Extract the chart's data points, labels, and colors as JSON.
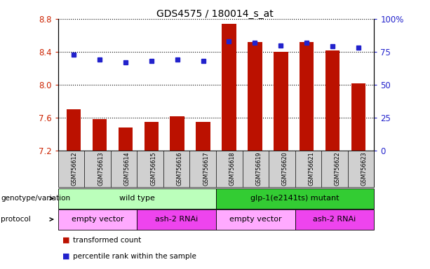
{
  "title": "GDS4575 / 180014_s_at",
  "samples": [
    "GSM756612",
    "GSM756613",
    "GSM756614",
    "GSM756615",
    "GSM756616",
    "GSM756617",
    "GSM756618",
    "GSM756619",
    "GSM756620",
    "GSM756621",
    "GSM756622",
    "GSM756623"
  ],
  "transformed_count": [
    7.7,
    7.58,
    7.48,
    7.55,
    7.62,
    7.55,
    8.74,
    8.52,
    8.4,
    8.52,
    8.42,
    8.02
  ],
  "percentile_rank": [
    73,
    69,
    67,
    68,
    69,
    68,
    83,
    82,
    80,
    82,
    79,
    78
  ],
  "ylim_left": [
    7.2,
    8.8
  ],
  "ylim_right": [
    0,
    100
  ],
  "yticks_left": [
    7.2,
    7.6,
    8.0,
    8.4,
    8.8
  ],
  "yticks_right": [
    0,
    25,
    50,
    75,
    100
  ],
  "bar_color": "#bb1100",
  "dot_color": "#2222cc",
  "bar_bottom": 7.2,
  "genotype_groups": [
    {
      "label": "wild type",
      "start": 0,
      "end": 6,
      "color": "#bbffbb"
    },
    {
      "label": "glp-1(e2141ts) mutant",
      "start": 6,
      "end": 12,
      "color": "#33cc33"
    }
  ],
  "protocol_groups": [
    {
      "label": "empty vector",
      "start": 0,
      "end": 3,
      "color": "#ffaaff"
    },
    {
      "label": "ash-2 RNAi",
      "start": 3,
      "end": 6,
      "color": "#ee44ee"
    },
    {
      "label": "empty vector",
      "start": 6,
      "end": 9,
      "color": "#ffaaff"
    },
    {
      "label": "ash-2 RNAi",
      "start": 9,
      "end": 12,
      "color": "#ee44ee"
    }
  ],
  "legend_items": [
    {
      "label": "transformed count",
      "color": "#bb1100"
    },
    {
      "label": "percentile rank within the sample",
      "color": "#2222cc"
    }
  ],
  "tick_label_color_left": "#cc2200",
  "tick_label_color_right": "#2222cc",
  "xtick_bg_color": "#d0d0d0"
}
